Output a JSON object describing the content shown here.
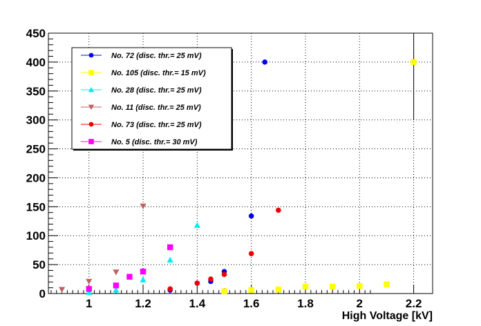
{
  "chart_data": {
    "type": "scatter",
    "title": "",
    "xlabel": "High Voltage [kV]",
    "ylabel": "",
    "xlim": [
      0.85,
      2.27
    ],
    "ylim": [
      0,
      450
    ],
    "x_ticks": [
      "1",
      "1.2",
      "1.4",
      "1.6",
      "1.8",
      "2",
      "2.2"
    ],
    "x_tick_values": [
      1,
      1.2,
      1.4,
      1.6,
      1.8,
      2,
      2.2
    ],
    "y_ticks": [
      "0",
      "50",
      "100",
      "150",
      "200",
      "250",
      "300",
      "350",
      "400",
      "450"
    ],
    "y_tick_values": [
      0,
      50,
      100,
      150,
      200,
      250,
      300,
      350,
      400,
      450
    ],
    "grid": true,
    "legend_position": "top-left",
    "series": [
      {
        "name": "No. 72 (disc. thr.= 25 mV)",
        "color": "#0000ee",
        "marker": "circle",
        "x": [
          1.3,
          1.4,
          1.45,
          1.5,
          1.6,
          1.65
        ],
        "y": [
          6,
          18,
          21,
          38,
          134,
          400
        ]
      },
      {
        "name": "No. 105 (disc. thr.= 15 mV)",
        "color": "#ffff00",
        "marker": "square",
        "x": [
          1.5,
          1.6,
          1.7,
          1.8,
          1.9,
          2.0,
          2.1,
          2.2
        ],
        "y": [
          4,
          6,
          7,
          12,
          12,
          13,
          16,
          400
        ],
        "error_bars": [
          {
            "x": 2.2,
            "low": 300,
            "high": 450
          }
        ]
      },
      {
        "name": "No. 28 (disc. thr.= 25 mV)",
        "color": "#00eeee",
        "marker": "triangle-up",
        "x": [
          1.0,
          1.1,
          1.2,
          1.3,
          1.4
        ],
        "y": [
          2,
          6,
          24,
          58,
          118
        ]
      },
      {
        "name": "No. 11 (disc. thr.= 25 mV)",
        "color": "#c06060",
        "marker": "triangle-down",
        "x": [
          0.9,
          1.0,
          1.1,
          1.2
        ],
        "y": [
          7,
          21,
          37,
          151
        ]
      },
      {
        "name": "No. 73 (disc. thr.= 25 mV)",
        "color": "#ee0000",
        "marker": "circle",
        "x": [
          1.3,
          1.4,
          1.45,
          1.5,
          1.6,
          1.7
        ],
        "y": [
          8,
          18,
          25,
          33,
          69,
          144
        ]
      },
      {
        "name": "No. 5 (disc. thr.= 30 mV)",
        "color": "#ff00ff",
        "marker": "square",
        "x": [
          1.0,
          1.1,
          1.15,
          1.2,
          1.3
        ],
        "y": [
          8,
          14,
          29,
          38,
          80
        ]
      }
    ]
  }
}
